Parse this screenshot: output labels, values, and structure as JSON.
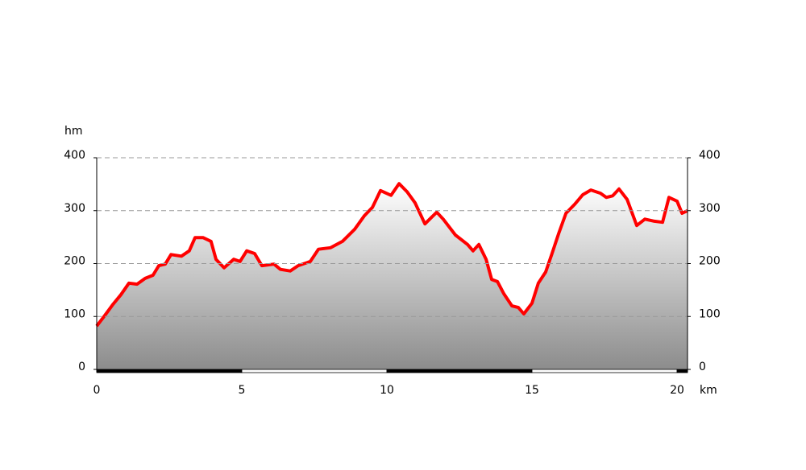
{
  "chart_data": {
    "type": "area",
    "y_label": "hm",
    "x_label": "km",
    "color": "#ff0000",
    "x": [
      0,
      0.28,
      0.56,
      0.83,
      1.11,
      1.39,
      1.67,
      1.94,
      2.14,
      2.36,
      2.56,
      2.92,
      3.19,
      3.39,
      3.67,
      3.94,
      4.11,
      4.39,
      4.72,
      4.94,
      5.17,
      5.44,
      5.69,
      6.11,
      6.33,
      6.67,
      6.94,
      7.36,
      7.64,
      8.06,
      8.47,
      8.89,
      9.22,
      9.5,
      9.78,
      10.14,
      10.42,
      10.69,
      10.97,
      11.31,
      11.53,
      11.72,
      11.94,
      12.36,
      12.78,
      12.97,
      13.17,
      13.42,
      13.61,
      13.81,
      14.03,
      14.31,
      14.53,
      14.72,
      15.0,
      15.22,
      15.47,
      15.69,
      15.92,
      16.17,
      16.47,
      16.75,
      17.03,
      17.36,
      17.56,
      17.78,
      18.0,
      18.28,
      18.61,
      18.89,
      19.22,
      19.5,
      19.72,
      20.0,
      20.17,
      20.36
    ],
    "values": [
      82,
      102,
      123,
      141,
      163,
      161,
      172,
      178,
      196,
      199,
      217,
      214,
      224,
      249,
      249,
      242,
      208,
      192,
      208,
      204,
      224,
      219,
      196,
      199,
      189,
      186,
      196,
      204,
      227,
      230,
      242,
      265,
      290,
      306,
      338,
      329,
      351,
      336,
      315,
      275,
      287,
      297,
      284,
      254,
      236,
      224,
      236,
      208,
      170,
      166,
      143,
      120,
      117,
      105,
      125,
      163,
      184,
      219,
      257,
      295,
      312,
      330,
      339,
      333,
      325,
      328,
      341,
      321,
      272,
      284,
      280,
      278,
      325,
      318,
      295,
      300
    ],
    "xlim": [
      0,
      20.36
    ],
    "ylim": [
      0,
      400
    ],
    "xticks": [
      0,
      5,
      10,
      15,
      20
    ],
    "yticks": [
      0,
      100,
      200,
      300,
      400
    ],
    "grid": true
  }
}
